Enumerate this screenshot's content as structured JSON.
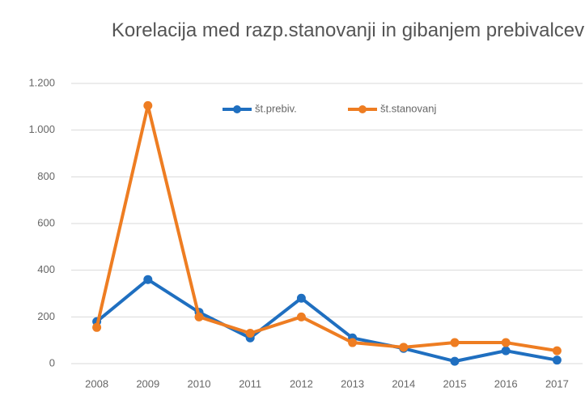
{
  "chart_data": {
    "type": "line",
    "title": "Korelacija med razp.stanovanji in gibanjem prebivalcev",
    "categories": [
      "2008",
      "2009",
      "2010",
      "2011",
      "2012",
      "2013",
      "2014",
      "2015",
      "2016",
      "2017"
    ],
    "series": [
      {
        "name": "št.prebiv.",
        "color": "#1f6fc0",
        "values": [
          180,
          360,
          220,
          110,
          280,
          110,
          65,
          10,
          55,
          15
        ]
      },
      {
        "name": "št.stanovanj",
        "color": "#ee7d22",
        "values": [
          155,
          1105,
          200,
          130,
          200,
          90,
          70,
          90,
          90,
          55
        ]
      }
    ],
    "ylim": [
      0,
      1200
    ],
    "yticks": [
      0,
      200,
      400,
      600,
      800,
      {
        "value": 1000,
        "label": "1.000"
      },
      {
        "value": 1200,
        "label": "1.200"
      }
    ],
    "grid": true,
    "legend": "top"
  }
}
